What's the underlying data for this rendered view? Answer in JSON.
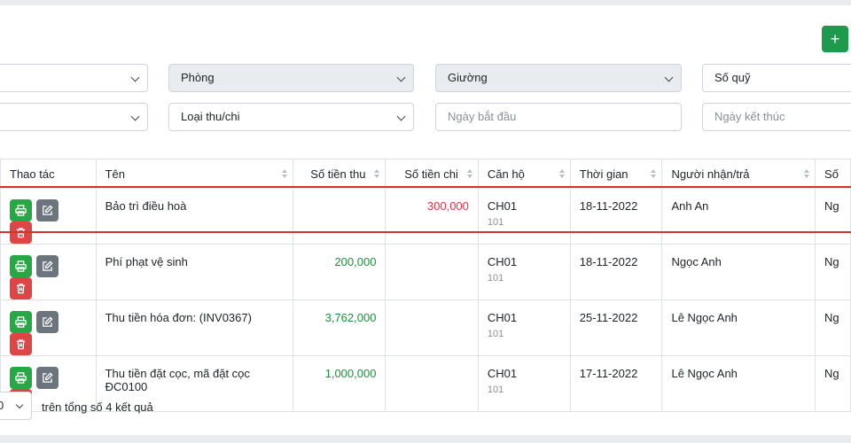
{
  "toolbar": {
    "add_label": "+"
  },
  "filters": {
    "row1": [
      {
        "value": "",
        "placeholder": ""
      },
      {
        "value": "Phòng"
      },
      {
        "value": "Giường"
      },
      {
        "value": "Số quỹ"
      }
    ],
    "row2": [
      {
        "value": ""
      },
      {
        "value": "Loại thu/chi"
      },
      {
        "placeholder": "Ngày bắt đầu"
      },
      {
        "placeholder": "Ngày kết thúc"
      }
    ]
  },
  "table": {
    "headers": [
      "Thao tác",
      "Tên",
      "Số tiền thu",
      "Số tiền chi",
      "Căn hộ",
      "Thời gian",
      "Người nhận/trả",
      "Số"
    ],
    "rows": [
      {
        "name": "Bảo trì điều hoà",
        "income": "",
        "expense": "300,000",
        "apartment": "CH01",
        "room": "101",
        "time": "18-11-2022",
        "person": "Anh An",
        "extra": "Ng"
      },
      {
        "name": "Phí phạt vệ sinh",
        "income": "200,000",
        "expense": "",
        "apartment": "CH01",
        "room": "101",
        "time": "18-11-2022",
        "person": "Ngọc Anh",
        "extra": "Ng"
      },
      {
        "name": "Thu tiền hóa đơn: (INV0367)",
        "income": "3,762,000",
        "expense": "",
        "apartment": "CH01",
        "room": "101",
        "time": "25-11-2022",
        "person": "Lê Ngọc Anh",
        "extra": "Ng"
      },
      {
        "name": "Thu tiền đặt cọc, mã đặt cọc ĐC0100",
        "income": "1,000,000",
        "expense": "",
        "apartment": "CH01",
        "room": "101",
        "time": "17-11-2022",
        "person": "Lê Ngọc Anh",
        "extra": "Ng"
      }
    ]
  },
  "pagination": {
    "page_size": "0",
    "total_text": "trên tổng số 4 kết quả"
  },
  "colors": {
    "income": "#1e8e3e",
    "expense": "#dc3545",
    "highlight": "#d9302f",
    "add_button": "#1e9a4c"
  },
  "icons": {
    "print": "printer-icon",
    "edit": "edit-icon",
    "delete": "trash-icon"
  }
}
